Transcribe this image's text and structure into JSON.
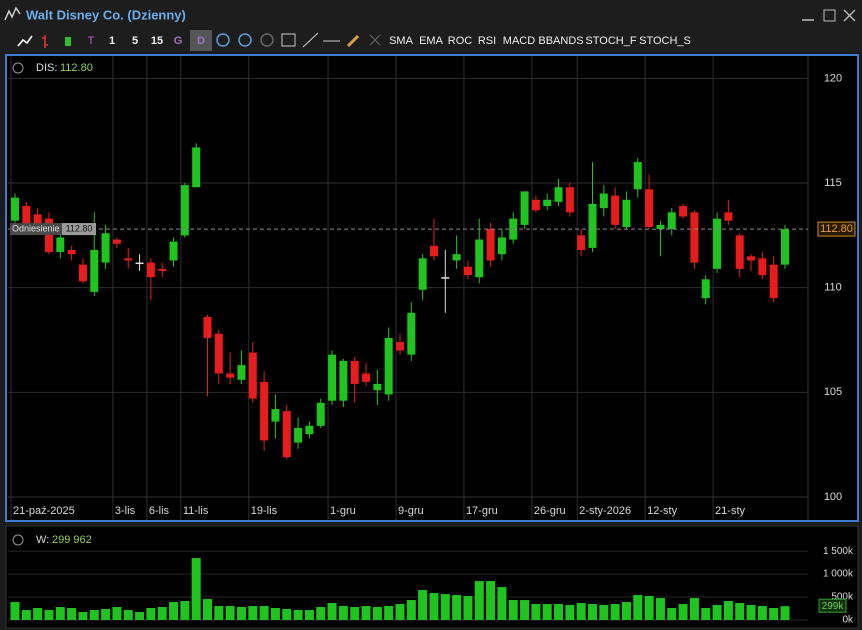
{
  "window": {
    "title": "Walt Disney Co. (Dzienny)"
  },
  "toolbar": {
    "timeframes": [
      "T",
      "1",
      "5",
      "15",
      "G",
      "D"
    ],
    "indicators": [
      "SMA",
      "EMA",
      "ROC",
      "RSI",
      "MACD",
      "BBANDS",
      "STOCH_F",
      "STOCH_S"
    ]
  },
  "chart_data": [
    {
      "type": "candlestick",
      "symbol": "DIS:",
      "last": {
        "value": 112.8,
        "label": "112.80"
      },
      "reference_label": "Odniesienie",
      "categories": [
        "21-paź-2025",
        null,
        null,
        null,
        null,
        null,
        null,
        null,
        null,
        "3-lis",
        null,
        null,
        "6-lis",
        null,
        null,
        "11-lis",
        null,
        null,
        null,
        null,
        null,
        "19-lis",
        null,
        null,
        null,
        null,
        null,
        null,
        "1-gru",
        null,
        null,
        null,
        null,
        null,
        "9-gru",
        null,
        null,
        null,
        null,
        null,
        "17-gru",
        null,
        null,
        null,
        null,
        null,
        "26-gru",
        null,
        null,
        null,
        "2-sty-2026",
        null,
        null,
        null,
        null,
        null,
        "12-sty",
        null,
        null,
        null,
        null,
        null,
        "21-sty",
        null,
        null,
        null,
        null,
        null,
        null
      ],
      "open": [
        113.2,
        113.9,
        113.5,
        113.3,
        111.7,
        111.8,
        111.1,
        109.8,
        111.2,
        112.3,
        111.4,
        111.2,
        111.2,
        110.9,
        111.3,
        112.5,
        114.8,
        108.6,
        107.8,
        105.9,
        105.6,
        106.9,
        105.5,
        103.6,
        104.1,
        102.6,
        103.0,
        103.4,
        104.6,
        104.6,
        106.5,
        105.9,
        105.1,
        104.9,
        107.4,
        106.8,
        109.9,
        112.0,
        110.5,
        111.3,
        111.0,
        110.5,
        112.8,
        111.6,
        112.3,
        113.0,
        114.2,
        113.9,
        114.1,
        114.8,
        112.5,
        111.9,
        113.8,
        114.4,
        112.9,
        114.7,
        114.7,
        112.8,
        112.8,
        113.9,
        113.6,
        109.5,
        110.9,
        113.6,
        112.5,
        111.5,
        111.4,
        111.1,
        111.1
      ],
      "high": [
        114.5,
        114.1,
        113.8,
        113.6,
        112.7,
        112.0,
        111.4,
        113.6,
        113.0,
        112.4,
        111.9,
        111.6,
        111.4,
        111.2,
        112.4,
        115.0,
        116.9,
        108.7,
        108.0,
        106.9,
        107.0,
        107.4,
        106.0,
        104.9,
        104.4,
        103.8,
        103.6,
        104.7,
        107.0,
        106.6,
        106.7,
        106.4,
        106.1,
        108.1,
        107.8,
        109.3,
        111.6,
        113.3,
        111.8,
        112.5,
        111.3,
        113.3,
        113.1,
        112.8,
        113.6,
        114.6,
        114.4,
        114.5,
        115.2,
        115.0,
        112.8,
        116.0,
        114.9,
        114.8,
        114.6,
        116.2,
        115.4,
        113.2,
        113.8,
        114.0,
        113.7,
        110.6,
        113.6,
        114.2,
        112.6,
        111.6,
        111.7,
        111.5,
        113.0
      ],
      "low": [
        112.9,
        112.9,
        112.6,
        111.6,
        111.4,
        111.3,
        110.2,
        109.6,
        110.9,
        111.9,
        110.9,
        110.8,
        109.4,
        110.5,
        111.0,
        112.4,
        114.8,
        104.8,
        105.4,
        105.4,
        105.4,
        104.5,
        102.2,
        102.8,
        101.8,
        102.3,
        102.8,
        103.3,
        104.4,
        104.3,
        104.5,
        105.3,
        104.4,
        104.6,
        106.8,
        106.5,
        109.4,
        111.3,
        108.8,
        110.9,
        110.4,
        110.2,
        111.0,
        111.3,
        112.1,
        112.8,
        113.6,
        113.7,
        113.9,
        113.4,
        111.5,
        111.7,
        113.4,
        112.8,
        112.8,
        114.3,
        112.8,
        111.5,
        112.5,
        113.3,
        110.9,
        109.2,
        110.7,
        113.0,
        110.5,
        110.8,
        110.4,
        109.3,
        110.9
      ],
      "close": [
        114.3,
        113.0,
        113.0,
        111.7,
        112.4,
        111.6,
        110.3,
        111.8,
        112.6,
        112.1,
        111.3,
        111.2,
        110.5,
        110.8,
        112.2,
        114.9,
        116.7,
        107.6,
        105.9,
        105.7,
        106.3,
        104.7,
        102.7,
        104.2,
        101.9,
        103.3,
        103.4,
        104.5,
        106.8,
        106.5,
        105.4,
        105.5,
        105.4,
        107.6,
        107.0,
        108.8,
        111.4,
        111.5,
        110.5,
        111.6,
        110.6,
        112.3,
        111.3,
        112.4,
        113.3,
        114.6,
        113.7,
        114.2,
        114.8,
        113.6,
        111.8,
        114.0,
        114.5,
        113.0,
        114.2,
        116.0,
        112.9,
        113.0,
        113.6,
        113.4,
        111.2,
        110.4,
        113.3,
        113.2,
        110.9,
        111.3,
        110.6,
        109.5,
        112.8
      ],
      "up_color": "#1fc41f",
      "down_color": "#e81c1c",
      "flat_color": "#e0e0e0",
      "ylim": [
        98.9,
        120.4
      ],
      "yticks": [
        100,
        105,
        110,
        115,
        120
      ],
      "grid": true
    },
    {
      "type": "bar",
      "name": "W:",
      "last": {
        "value": 299962,
        "label": "299 962"
      },
      "last_box": {
        "value": 299962,
        "label": "299k"
      },
      "values": [
        391000,
        217000,
        261000,
        217000,
        283000,
        261000,
        174000,
        217000,
        239000,
        283000,
        217000,
        174000,
        261000,
        283000,
        391000,
        413000,
        1348000,
        457000,
        304000,
        304000,
        283000,
        304000,
        304000,
        261000,
        239000,
        217000,
        217000,
        283000,
        370000,
        304000,
        283000,
        304000,
        283000,
        304000,
        348000,
        435000,
        652000,
        587000,
        565000,
        543000,
        522000,
        848000,
        848000,
        717000,
        435000,
        435000,
        348000,
        348000,
        348000,
        326000,
        370000,
        348000,
        326000,
        348000,
        391000,
        543000,
        522000,
        478000,
        261000,
        348000,
        478000,
        261000,
        326000,
        413000,
        370000,
        326000,
        304000,
        261000,
        299962
      ],
      "color": "#1fc41f",
      "ylim": [
        0,
        1960000
      ],
      "yticks": [
        {
          "value": 0,
          "label": "0k"
        },
        {
          "value": 500000,
          "label": "500k"
        },
        {
          "value": 1000000,
          "label": "1 000k"
        },
        {
          "value": 1500000,
          "label": "1 500k"
        }
      ]
    }
  ]
}
